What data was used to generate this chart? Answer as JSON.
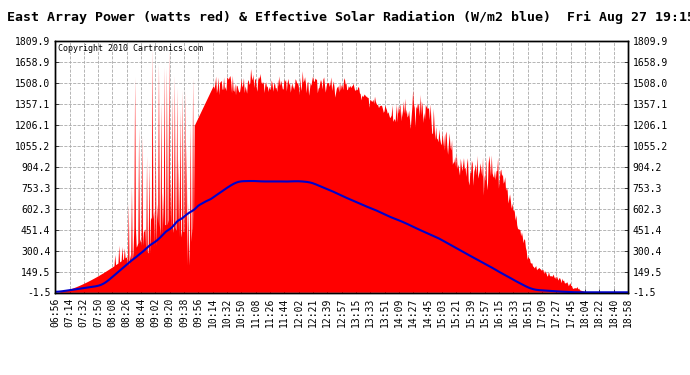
{
  "title": "East Array Power (watts red) & Effective Solar Radiation (W/m2 blue)  Fri Aug 27 19:15",
  "copyright": "Copyright 2010 Cartronics.com",
  "y_ticks": [
    -1.5,
    149.5,
    300.4,
    451.4,
    602.3,
    753.3,
    904.2,
    1055.2,
    1206.1,
    1357.1,
    1508.0,
    1658.9,
    1809.9
  ],
  "x_labels": [
    "06:56",
    "07:14",
    "07:32",
    "07:50",
    "08:08",
    "08:26",
    "08:44",
    "09:02",
    "09:20",
    "09:38",
    "09:56",
    "10:14",
    "10:32",
    "10:50",
    "11:08",
    "11:26",
    "11:44",
    "12:02",
    "12:21",
    "12:39",
    "12:57",
    "13:15",
    "13:33",
    "13:51",
    "14:09",
    "14:27",
    "14:45",
    "15:03",
    "15:21",
    "15:39",
    "15:57",
    "16:15",
    "16:33",
    "16:51",
    "17:09",
    "17:27",
    "17:45",
    "18:04",
    "18:22",
    "18:40",
    "18:58"
  ],
  "bg_color": "#ffffff",
  "plot_bg": "#ffffff",
  "grid_color": "#aaaaaa",
  "red_color": "#ff0000",
  "blue_color": "#0000cc",
  "title_fontsize": 9.5,
  "tick_fontsize": 7,
  "ymin": -1.5,
  "ymax": 1809.9
}
